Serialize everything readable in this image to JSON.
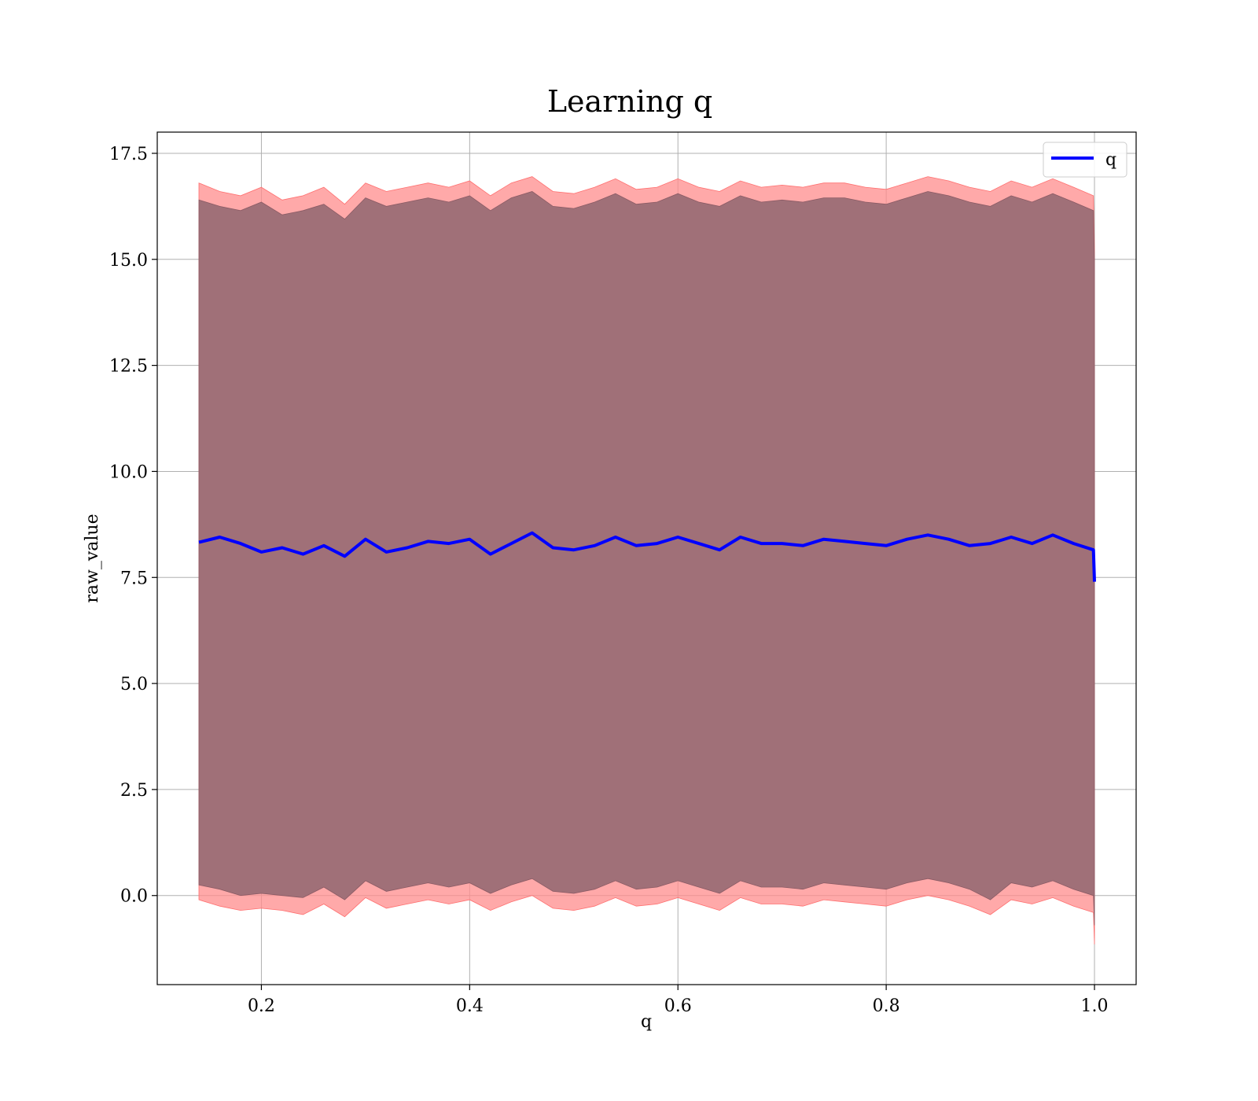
{
  "chart_data": {
    "type": "line",
    "title": "Learning q",
    "xlabel": "q",
    "ylabel": "raw_value",
    "xlim": [
      0.1,
      1.04
    ],
    "ylim": [
      -2.1,
      18.0
    ],
    "xticks": [
      "0.2",
      "0.4",
      "0.6",
      "0.8",
      "1.0"
    ],
    "xtick_values": [
      0.2,
      0.4,
      0.6,
      0.8,
      1.0
    ],
    "yticks": [
      "0.0",
      "2.5",
      "5.0",
      "7.5",
      "10.0",
      "12.5",
      "15.0",
      "17.5"
    ],
    "ytick_values": [
      0.0,
      2.5,
      5.0,
      7.5,
      10.0,
      12.5,
      15.0,
      17.5
    ],
    "grid": true,
    "legend": {
      "placement": "top-right",
      "entries": [
        "q"
      ]
    },
    "series": [
      {
        "name": "q",
        "color": "#0000ff",
        "x": [
          0.14,
          0.16,
          0.18,
          0.2,
          0.22,
          0.24,
          0.26,
          0.28,
          0.3,
          0.32,
          0.34,
          0.36,
          0.38,
          0.4,
          0.42,
          0.44,
          0.46,
          0.48,
          0.5,
          0.52,
          0.54,
          0.56,
          0.58,
          0.6,
          0.62,
          0.64,
          0.66,
          0.68,
          0.7,
          0.72,
          0.74,
          0.76,
          0.78,
          0.8,
          0.82,
          0.84,
          0.86,
          0.88,
          0.9,
          0.92,
          0.94,
          0.96,
          0.98,
          0.999,
          1.0
        ],
        "y": [
          8.33,
          8.45,
          8.3,
          8.1,
          8.2,
          8.05,
          8.25,
          8.0,
          8.4,
          8.1,
          8.2,
          8.35,
          8.3,
          8.4,
          8.05,
          8.3,
          8.55,
          8.2,
          8.15,
          8.25,
          8.45,
          8.25,
          8.3,
          8.45,
          8.3,
          8.15,
          8.45,
          8.3,
          8.3,
          8.25,
          8.4,
          8.35,
          8.3,
          8.25,
          8.4,
          8.5,
          8.4,
          8.25,
          8.3,
          8.45,
          8.3,
          8.5,
          8.3,
          8.15,
          7.4
        ],
        "upper_outer": [
          16.8,
          16.6,
          16.5,
          16.7,
          16.4,
          16.5,
          16.7,
          16.3,
          16.8,
          16.6,
          16.7,
          16.8,
          16.7,
          16.85,
          16.5,
          16.8,
          16.95,
          16.6,
          16.55,
          16.7,
          16.9,
          16.65,
          16.7,
          16.9,
          16.7,
          16.6,
          16.85,
          16.7,
          16.75,
          16.7,
          16.8,
          16.8,
          16.7,
          16.65,
          16.8,
          16.95,
          16.85,
          16.7,
          16.6,
          16.85,
          16.7,
          16.9,
          16.7,
          16.5,
          15.3
        ],
        "upper_inner": [
          16.4,
          16.25,
          16.15,
          16.35,
          16.05,
          16.15,
          16.3,
          15.95,
          16.45,
          16.25,
          16.35,
          16.45,
          16.35,
          16.5,
          16.15,
          16.45,
          16.6,
          16.25,
          16.2,
          16.35,
          16.55,
          16.3,
          16.35,
          16.55,
          16.35,
          16.25,
          16.5,
          16.35,
          16.4,
          16.35,
          16.45,
          16.45,
          16.35,
          16.3,
          16.45,
          16.6,
          16.5,
          16.35,
          16.25,
          16.5,
          16.35,
          16.55,
          16.35,
          16.15,
          15.0
        ],
        "lower_inner": [
          0.25,
          0.15,
          0.0,
          0.05,
          0.0,
          -0.05,
          0.2,
          -0.1,
          0.35,
          0.1,
          0.2,
          0.3,
          0.2,
          0.3,
          0.05,
          0.25,
          0.4,
          0.1,
          0.05,
          0.15,
          0.35,
          0.15,
          0.2,
          0.35,
          0.2,
          0.05,
          0.35,
          0.2,
          0.2,
          0.15,
          0.3,
          0.25,
          0.2,
          0.15,
          0.3,
          0.4,
          0.3,
          0.15,
          -0.1,
          0.3,
          0.2,
          0.35,
          0.15,
          0.0,
          -0.7
        ],
        "lower_outer": [
          -0.1,
          -0.25,
          -0.35,
          -0.3,
          -0.35,
          -0.45,
          -0.2,
          -0.5,
          -0.05,
          -0.3,
          -0.2,
          -0.1,
          -0.2,
          -0.1,
          -0.35,
          -0.15,
          0.0,
          -0.3,
          -0.35,
          -0.25,
          -0.05,
          -0.25,
          -0.2,
          -0.05,
          -0.2,
          -0.35,
          -0.05,
          -0.2,
          -0.2,
          -0.25,
          -0.1,
          -0.15,
          -0.2,
          -0.25,
          -0.1,
          0.0,
          -0.1,
          -0.25,
          -0.45,
          -0.1,
          -0.2,
          -0.05,
          -0.25,
          -0.4,
          -1.15
        ]
      }
    ]
  }
}
